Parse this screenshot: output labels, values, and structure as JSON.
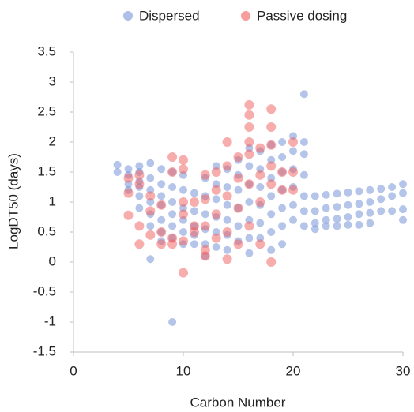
{
  "chart_data": {
    "type": "scatter",
    "x_label": "Carbon Number",
    "y_label": "LogDT50 (days)",
    "xlim": [
      0,
      30
    ],
    "xticks": [
      0,
      10,
      20,
      30
    ],
    "ylim": [
      -1.5,
      3.5
    ],
    "yticks": [
      -1.5,
      -1,
      -0.5,
      0,
      0.5,
      1,
      1.5,
      2,
      2.5,
      3,
      3.5
    ],
    "grid": false,
    "legend": "top",
    "series": [
      {
        "name": "Dispersed",
        "color": "#7896d8",
        "x": [
          4,
          4,
          5,
          5,
          5,
          5,
          6,
          6,
          6,
          6,
          6,
          6,
          7,
          7,
          7,
          7,
          7,
          7,
          7,
          8,
          8,
          8,
          8,
          8,
          8,
          8,
          9,
          9,
          9,
          9,
          9,
          9,
          9,
          10,
          10,
          10,
          10,
          10,
          10,
          11,
          11,
          11,
          11,
          11,
          12,
          12,
          12,
          12,
          12,
          12,
          13,
          13,
          13,
          13,
          13,
          13,
          14,
          14,
          14,
          14,
          14,
          14,
          15,
          15,
          15,
          15,
          15,
          15,
          16,
          16,
          16,
          16,
          16,
          16,
          16,
          17,
          17,
          17,
          17,
          17,
          17,
          18,
          18,
          18,
          18,
          18,
          18,
          18,
          19,
          19,
          19,
          19,
          19,
          19,
          19,
          20,
          20,
          20,
          20,
          20,
          20,
          21,
          21,
          21,
          21,
          21,
          21,
          21,
          22,
          22,
          22,
          22,
          23,
          23,
          23,
          23,
          24,
          24,
          24,
          24,
          25,
          25,
          25,
          25,
          26,
          26,
          26,
          26,
          27,
          27,
          27,
          27,
          28,
          28,
          28,
          29,
          29,
          29,
          30,
          30,
          30,
          30
        ],
        "values": [
          1.62,
          1.5,
          1.55,
          1.45,
          1.3,
          1.2,
          1.6,
          1.5,
          1.35,
          1.25,
          1.1,
          0.9,
          1.65,
          1.4,
          1.2,
          1.0,
          0.8,
          0.6,
          0.05,
          1.55,
          1.3,
          1.1,
          0.95,
          0.7,
          0.5,
          0.35,
          1.5,
          1.25,
          1.0,
          0.8,
          0.6,
          0.4,
          -1.0,
          1.45,
          1.2,
          0.9,
          0.7,
          0.5,
          0.3,
          1.15,
          0.85,
          0.6,
          0.45,
          0.3,
          1.4,
          1.1,
          0.8,
          0.55,
          0.3,
          0.1,
          1.6,
          1.3,
          1.05,
          0.75,
          0.5,
          0.25,
          1.55,
          1.25,
          0.95,
          0.7,
          0.45,
          0.2,
          1.7,
          1.45,
          1.2,
          0.9,
          0.6,
          0.35,
          1.9,
          1.6,
          1.3,
          1.0,
          0.7,
          0.4,
          0.15,
          1.85,
          1.55,
          1.25,
          0.95,
          0.65,
          0.4,
          1.95,
          1.7,
          1.4,
          1.1,
          0.8,
          0.5,
          0.2,
          2.0,
          1.75,
          1.5,
          1.2,
          0.9,
          0.6,
          0.3,
          2.1,
          1.85,
          1.55,
          1.25,
          0.95,
          0.7,
          2.8,
          2.0,
          1.8,
          1.45,
          1.1,
          0.85,
          0.6,
          1.1,
          0.85,
          0.65,
          0.55,
          1.12,
          0.9,
          0.7,
          0.6,
          1.14,
          0.92,
          0.72,
          0.6,
          1.16,
          0.95,
          0.75,
          0.62,
          1.18,
          0.97,
          0.8,
          0.62,
          1.2,
          1.0,
          0.82,
          0.65,
          1.22,
          1.05,
          0.85,
          1.25,
          1.1,
          0.85,
          1.3,
          1.15,
          0.88,
          0.7
        ]
      },
      {
        "name": "Passive dosing",
        "color": "#f25c5c",
        "x": [
          5,
          5,
          5,
          6,
          6,
          6,
          6,
          7,
          7,
          7,
          8,
          8,
          8,
          9,
          9,
          9,
          9,
          10,
          10,
          10,
          10,
          10,
          10,
          11,
          11,
          11,
          12,
          12,
          12,
          12,
          12,
          13,
          13,
          13,
          13,
          14,
          14,
          14,
          14,
          14,
          15,
          15,
          15,
          15,
          16,
          16,
          16,
          16,
          16,
          16,
          16,
          17,
          17,
          17,
          17,
          18,
          18,
          18,
          18,
          18,
          18,
          19,
          19,
          20,
          20,
          20
        ],
        "values": [
          1.4,
          1.15,
          0.78,
          1.45,
          1.3,
          0.6,
          0.3,
          1.1,
          0.85,
          0.45,
          0.95,
          0.5,
          0.3,
          1.75,
          1.5,
          0.4,
          0.3,
          1.7,
          1.55,
          1.0,
          0.8,
          0.35,
          -0.18,
          1.0,
          0.6,
          0.5,
          1.45,
          1.05,
          0.6,
          0.2,
          0.1,
          1.5,
          1.2,
          0.8,
          0.4,
          2.0,
          1.6,
          1.1,
          0.5,
          0.05,
          1.75,
          1.4,
          0.9,
          0.3,
          2.62,
          2.45,
          2.25,
          2.0,
          1.8,
          1.3,
          0.6,
          1.9,
          1.45,
          1.0,
          0.3,
          2.55,
          2.25,
          1.95,
          1.6,
          1.3,
          0.0,
          1.5,
          1.2,
          2.0,
          1.5,
          1.2
        ]
      }
    ]
  }
}
